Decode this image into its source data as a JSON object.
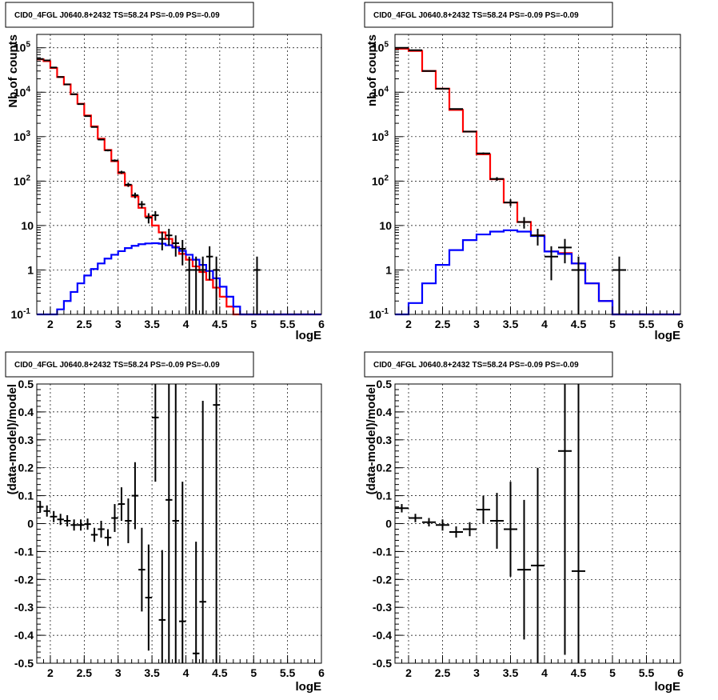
{
  "colors": {
    "data": "#000000",
    "total_model": "#ff0000",
    "source_model": "#0000ff",
    "grid": "#000000"
  },
  "chart_data": [
    {
      "type": "line",
      "panel": "top-left",
      "title": "CID0_4FGL J0640.8+2432 TS=58.24 PS=-0.09 PS=-0.09",
      "xlabel": "logE",
      "ylabel": "Nb of counts",
      "xlim": [
        1.8,
        6.0
      ],
      "ylim": [
        0.1,
        200000
      ],
      "yscale": "log",
      "grid": true,
      "xticks": [
        "2",
        "2.5",
        "3",
        "3.5",
        "4",
        "4.5",
        "5",
        "5.5",
        "6"
      ],
      "yticks": [
        "10^-1",
        "1",
        "10",
        "10^2",
        "10^3",
        "10^4",
        "10^5"
      ],
      "bin_edges": [
        1.8,
        1.9,
        2.0,
        2.1,
        2.2,
        2.3,
        2.4,
        2.5,
        2.6,
        2.7,
        2.8,
        2.9,
        3.0,
        3.1,
        3.2,
        3.3,
        3.4,
        3.5,
        3.6,
        3.7,
        3.8,
        3.9,
        4.0,
        4.1,
        4.2,
        4.3,
        4.4,
        4.5,
        4.6,
        4.7,
        4.8,
        4.9,
        5.0,
        5.1,
        5.2,
        5.3,
        5.4,
        5.5,
        5.6,
        5.7,
        5.8,
        5.9,
        6.0
      ],
      "series": [
        {
          "name": "total model",
          "values": [
            55000,
            50000,
            35000,
            22000,
            15000,
            9000,
            5500,
            3000,
            1700,
            900,
            500,
            280,
            150,
            80,
            45,
            25,
            16,
            10,
            7,
            5,
            3.3,
            2.3,
            1.7,
            1.2,
            0.9,
            0.6,
            0.4,
            0.25,
            0.15,
            0.1,
            0.1,
            0.1,
            0.1,
            0.1,
            0.1,
            0.1,
            0.1,
            0.1,
            0.1,
            0.1,
            0.1,
            0.1
          ]
        },
        {
          "name": "source model",
          "values": [
            0.08,
            0.08,
            0.1,
            0.13,
            0.2,
            0.32,
            0.5,
            0.75,
            1.05,
            1.4,
            1.8,
            2.2,
            2.65,
            3.1,
            3.5,
            3.8,
            3.95,
            4.0,
            3.9,
            3.6,
            3.2,
            2.7,
            2.2,
            1.7,
            1.3,
            0.95,
            0.65,
            0.42,
            0.25,
            0.15,
            0.1,
            0.1,
            0.1,
            0.1,
            0.1,
            0.1,
            0.1,
            0.1,
            0.1,
            0.1,
            0.1,
            0.1
          ]
        }
      ],
      "points": [
        {
          "x": 1.85,
          "y": 56000
        },
        {
          "x": 1.95,
          "y": 52000
        },
        {
          "x": 2.05,
          "y": 36000
        },
        {
          "x": 2.15,
          "y": 22000
        },
        {
          "x": 2.25,
          "y": 15000
        },
        {
          "x": 2.35,
          "y": 9000
        },
        {
          "x": 2.45,
          "y": 5400
        },
        {
          "x": 2.55,
          "y": 2900
        },
        {
          "x": 2.65,
          "y": 1650
        },
        {
          "x": 2.75,
          "y": 860
        },
        {
          "x": 2.85,
          "y": 490
        },
        {
          "x": 2.95,
          "y": 290
        },
        {
          "x": 3.05,
          "y": 158
        },
        {
          "x": 3.15,
          "y": 83
        },
        {
          "x": 3.25,
          "y": 48
        },
        {
          "x": 3.35,
          "y": 30
        },
        {
          "x": 3.45,
          "y": 15
        },
        {
          "x": 3.55,
          "y": 17
        },
        {
          "x": 3.65,
          "y": 5
        },
        {
          "x": 3.75,
          "y": 6
        },
        {
          "x": 3.85,
          "y": 4
        },
        {
          "x": 3.95,
          "y": 3
        },
        {
          "x": 4.05,
          "y": 1
        },
        {
          "x": 4.15,
          "y": 1
        },
        {
          "x": 4.25,
          "y": 1
        },
        {
          "x": 4.35,
          "y": 2
        },
        {
          "x": 4.45,
          "y": 1
        },
        {
          "x": 5.05,
          "y": 1
        }
      ]
    },
    {
      "type": "line",
      "panel": "top-right",
      "title": "CID0_4FGL J0640.8+2432 TS=58.24 PS=-0.09 PS=-0.09",
      "xlabel": "logE",
      "ylabel": "nb of counts",
      "xlim": [
        1.8,
        6.0
      ],
      "ylim": [
        0.1,
        200000
      ],
      "yscale": "log",
      "grid": true,
      "xticks": [
        "2",
        "2.5",
        "3",
        "3.5",
        "4",
        "4.5",
        "5",
        "5.5",
        "6"
      ],
      "yticks": [
        "10^-1",
        "1",
        "10",
        "10^2",
        "10^3",
        "10^4",
        "10^5"
      ],
      "bin_edges": [
        1.8,
        2.0,
        2.2,
        2.4,
        2.6,
        2.8,
        3.0,
        3.2,
        3.4,
        3.6,
        3.8,
        4.0,
        4.2,
        4.4,
        4.6,
        4.8,
        5.0,
        5.2,
        5.4,
        5.6,
        5.8,
        6.0
      ],
      "series": [
        {
          "name": "total model",
          "values": [
            95000,
            85000,
            30000,
            12000,
            4000,
            1300,
            400,
            110,
            33,
            12,
            6,
            2.6,
            2.4,
            1.4,
            0.5,
            0.2,
            0.1,
            0.1,
            0.1,
            0.1,
            0.1
          ]
        },
        {
          "name": "source model",
          "values": [
            0.07,
            0.18,
            0.5,
            1.3,
            2.8,
            4.7,
            6.3,
            7.3,
            7.8,
            7.3,
            5.8,
            2.6,
            2.3,
            1.4,
            0.5,
            0.2,
            0.1,
            0.1,
            0.1,
            0.1,
            0.1
          ]
        }
      ],
      "points": [
        {
          "x": 1.9,
          "y": 100000
        },
        {
          "x": 2.1,
          "y": 88000
        },
        {
          "x": 2.3,
          "y": 30000
        },
        {
          "x": 2.5,
          "y": 12000
        },
        {
          "x": 2.7,
          "y": 4200
        },
        {
          "x": 2.9,
          "y": 1300
        },
        {
          "x": 3.1,
          "y": 420
        },
        {
          "x": 3.3,
          "y": 112
        },
        {
          "x": 3.5,
          "y": 33
        },
        {
          "x": 3.7,
          "y": 12
        },
        {
          "x": 3.9,
          "y": 6
        },
        {
          "x": 4.1,
          "y": 2
        },
        {
          "x": 4.3,
          "y": 3.2
        },
        {
          "x": 4.5,
          "y": 1
        },
        {
          "x": 5.1,
          "y": 1
        }
      ]
    },
    {
      "type": "scatter",
      "panel": "bottom-left",
      "title": "CID0_4FGL J0640.8+2432 TS=58.24 PS=-0.09 PS=-0.09",
      "xlabel": "logE",
      "ylabel": "(data-model)/model",
      "xlim": [
        1.8,
        6.0
      ],
      "ylim": [
        -0.5,
        0.5
      ],
      "grid": true,
      "xticks": [
        "2",
        "2.5",
        "3",
        "3.5",
        "4",
        "4.5",
        "5",
        "5.5",
        "6"
      ],
      "yticks": [
        "-0.5",
        "-0.4",
        "-0.3",
        "-0.2",
        "-0.1",
        "0",
        "0.1",
        "0.2",
        "0.3",
        "0.4",
        "0.5"
      ],
      "points": [
        {
          "x": 1.85,
          "y": 0.06,
          "err": 0.02
        },
        {
          "x": 1.95,
          "y": 0.045,
          "err": 0.02
        },
        {
          "x": 2.05,
          "y": 0.025,
          "err": 0.02
        },
        {
          "x": 2.15,
          "y": 0.015,
          "err": 0.02
        },
        {
          "x": 2.25,
          "y": 0.01,
          "err": 0.02
        },
        {
          "x": 2.35,
          "y": -0.005,
          "err": 0.02
        },
        {
          "x": 2.45,
          "y": -0.005,
          "err": 0.02
        },
        {
          "x": 2.55,
          "y": -0.002,
          "err": 0.02
        },
        {
          "x": 2.65,
          "y": -0.04,
          "err": 0.025
        },
        {
          "x": 2.75,
          "y": -0.02,
          "err": 0.03
        },
        {
          "x": 2.85,
          "y": -0.05,
          "err": 0.03
        },
        {
          "x": 2.95,
          "y": 0.02,
          "err": 0.05
        },
        {
          "x": 3.05,
          "y": 0.07,
          "err": 0.06
        },
        {
          "x": 3.15,
          "y": 0.01,
          "err": 0.08
        },
        {
          "x": 3.25,
          "y": 0.1,
          "err": 0.12
        },
        {
          "x": 3.35,
          "y": -0.165,
          "err": 0.15
        },
        {
          "x": 3.45,
          "y": -0.265,
          "err": 0.19
        },
        {
          "x": 3.55,
          "y": 0.38,
          "err": 0.23
        },
        {
          "x": 3.65,
          "y": -0.345,
          "err": 0.25
        },
        {
          "x": 3.75,
          "y": 0.085,
          "err": 0.6
        },
        {
          "x": 3.85,
          "y": 0.01,
          "err": 0.6
        },
        {
          "x": 3.95,
          "y": -0.35,
          "err": 0.5
        },
        {
          "x": 4.15,
          "y": -0.465,
          "err": 0.4
        },
        {
          "x": 4.25,
          "y": -0.28,
          "err": 0.72
        },
        {
          "x": 4.45,
          "y": 0.425,
          "err": 1.1
        }
      ]
    },
    {
      "type": "scatter",
      "panel": "bottom-right",
      "title": "CID0_4FGL J0640.8+2432 TS=58.24 PS=-0.09 PS=-0.09",
      "xlabel": "logE",
      "ylabel": "(data-model)/model",
      "xlim": [
        1.8,
        6.0
      ],
      "ylim": [
        -0.5,
        0.5
      ],
      "grid": true,
      "xticks": [
        "2",
        "2.5",
        "3",
        "3.5",
        "4",
        "4.5",
        "5",
        "5.5",
        "6"
      ],
      "yticks": [
        "-0.5",
        "-0.4",
        "-0.3",
        "-0.2",
        "-0.1",
        "0",
        "0.1",
        "0.2",
        "0.3",
        "0.4",
        "0.5"
      ],
      "points": [
        {
          "x": 1.9,
          "y": 0.055,
          "err": 0.015
        },
        {
          "x": 2.1,
          "y": 0.02,
          "err": 0.015
        },
        {
          "x": 2.3,
          "y": 0.005,
          "err": 0.015
        },
        {
          "x": 2.5,
          "y": -0.005,
          "err": 0.02
        },
        {
          "x": 2.7,
          "y": -0.03,
          "err": 0.02
        },
        {
          "x": 2.9,
          "y": -0.02,
          "err": 0.025
        },
        {
          "x": 3.1,
          "y": 0.05,
          "err": 0.05
        },
        {
          "x": 3.3,
          "y": 0.01,
          "err": 0.1
        },
        {
          "x": 3.5,
          "y": -0.02,
          "err": 0.17
        },
        {
          "x": 3.7,
          "y": -0.165,
          "err": 0.25
        },
        {
          "x": 3.9,
          "y": -0.15,
          "err": 0.35
        },
        {
          "x": 4.3,
          "y": 0.26,
          "err": 0.73
        },
        {
          "x": 4.5,
          "y": -0.17,
          "err": 0.9
        }
      ]
    }
  ]
}
